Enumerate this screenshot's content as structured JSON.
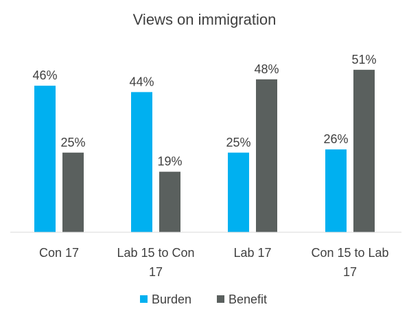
{
  "chart_data": {
    "type": "bar",
    "title": "Views on immigration",
    "xlabel": "",
    "ylabel": "",
    "ylim": [
      0,
      60
    ],
    "grid": false,
    "legend_position": "bottom",
    "categories": [
      [
        "Con 17"
      ],
      [
        "Lab 15 to Con",
        "17"
      ],
      [
        "Lab 17"
      ],
      [
        "Con 15 to Lab",
        "17"
      ]
    ],
    "series": [
      {
        "name": "Burden",
        "color": "#00B0F0",
        "values": [
          46,
          44,
          25,
          26
        ],
        "labels": [
          "46%",
          "44%",
          "25%",
          "26%"
        ]
      },
      {
        "name": "Benefit",
        "color": "#5A605E",
        "values": [
          25,
          19,
          48,
          51
        ],
        "labels": [
          "25%",
          "19%",
          "48%",
          "51%"
        ]
      }
    ]
  }
}
